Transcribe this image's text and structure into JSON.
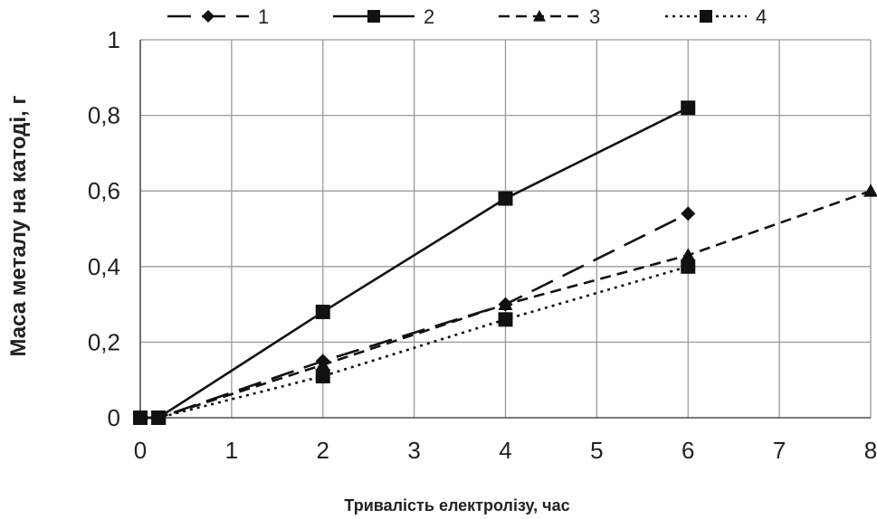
{
  "chart_data": {
    "type": "line",
    "title": "",
    "xlabel": "Тривалість електролізу, час",
    "ylabel": "Маса металу на катоді, г",
    "xlim": [
      0,
      8
    ],
    "ylim": [
      0,
      1
    ],
    "x_ticks": [
      0,
      1,
      2,
      3,
      4,
      5,
      6,
      7,
      8
    ],
    "y_ticks": [
      0,
      0.2,
      0.4,
      0.6,
      0.8,
      1
    ],
    "x_tick_labels": [
      "0",
      "1",
      "2",
      "3",
      "4",
      "5",
      "6",
      "7",
      "8"
    ],
    "y_tick_labels": [
      "0",
      "0,2",
      "0,4",
      "0,6",
      "0,8",
      "1"
    ],
    "grid": true,
    "legend_position": "top",
    "series": [
      {
        "name": "1",
        "style": "long-dash",
        "marker": "diamond",
        "x": [
          0,
          0.2,
          2,
          4,
          6
        ],
        "y": [
          0,
          0,
          0.15,
          0.3,
          0.54
        ]
      },
      {
        "name": "2",
        "style": "solid",
        "marker": "square",
        "x": [
          0,
          0.2,
          2,
          4,
          6
        ],
        "y": [
          0,
          0,
          0.28,
          0.58,
          0.82
        ]
      },
      {
        "name": "3",
        "style": "short-dash",
        "marker": "triangle",
        "x": [
          0,
          0.2,
          2,
          4,
          6,
          8
        ],
        "y": [
          0,
          0,
          0.14,
          0.3,
          0.43,
          0.6
        ]
      },
      {
        "name": "4",
        "style": "dotted",
        "marker": "square",
        "x": [
          0,
          0.2,
          2,
          4,
          6
        ],
        "y": [
          0,
          0,
          0.11,
          0.26,
          0.4
        ]
      }
    ]
  }
}
